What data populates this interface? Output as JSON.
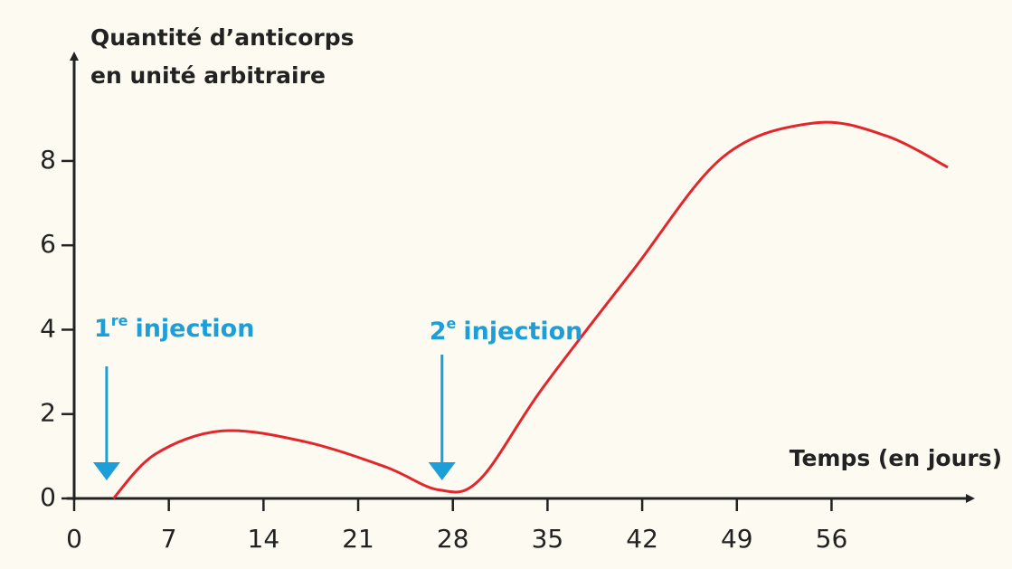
{
  "chart_data": {
    "type": "line",
    "ylabel": [
      "Quantité d’anticorps",
      "en unité arbitraire"
    ],
    "xlabel": "Temps (en jours)",
    "series": [
      {
        "name": "anticorps",
        "color": "#e3262b",
        "x": [
          2.9,
          6,
          10.9,
          17,
          23,
          27,
          30,
          34.6,
          41.3,
          48,
          54.7,
          60,
          64.6
        ],
        "values": [
          0,
          1.05,
          1.6,
          1.35,
          0.75,
          0.2,
          0.45,
          2.6,
          5.4,
          8.1,
          8.9,
          8.6,
          7.85
        ]
      }
    ],
    "annotations": [
      {
        "number": "1",
        "sup": "re",
        "text": "injection",
        "x": 2.4,
        "color": "#1c9fd8"
      },
      {
        "number": "2",
        "sup": "e",
        "text": "injection",
        "x": 27.2,
        "color": "#1c9fd8"
      }
    ],
    "xlim": [
      0,
      66
    ],
    "ylim": [
      0,
      10.4
    ],
    "xticks": [
      0,
      7,
      14,
      21,
      28,
      35,
      42,
      49,
      56
    ],
    "yticks": [
      0,
      2,
      4,
      6,
      8
    ]
  }
}
